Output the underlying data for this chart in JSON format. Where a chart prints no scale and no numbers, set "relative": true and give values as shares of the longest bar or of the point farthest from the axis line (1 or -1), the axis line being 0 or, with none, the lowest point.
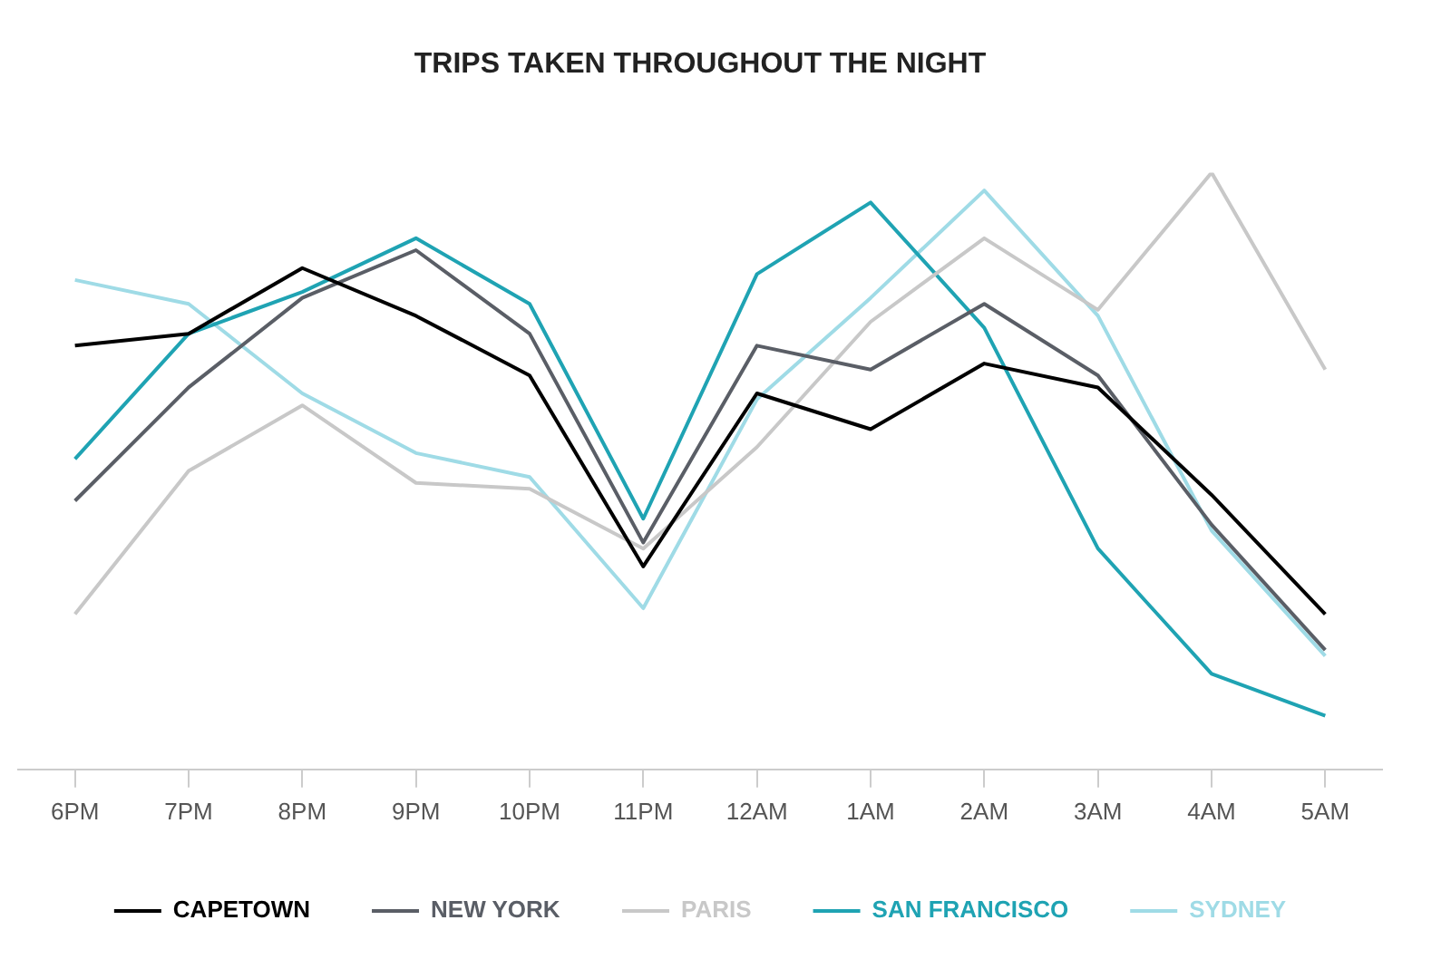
{
  "chart_data": {
    "type": "line",
    "title": "TRIPS TAKEN THROUGHOUT THE NIGHT",
    "relative": true,
    "legend": "bottom",
    "marker": "none",
    "line_style": "solid",
    "categories": [
      "6PM",
      "7PM",
      "8PM",
      "9PM",
      "10PM",
      "11PM",
      "12AM",
      "1AM",
      "2AM",
      "3AM",
      "4AM",
      "5AM"
    ],
    "series": [
      {
        "name": "CAPETOWN",
        "color": "#000000",
        "values": [
          0.71,
          0.73,
          0.84,
          0.76,
          0.66,
          0.34,
          0.63,
          0.57,
          0.68,
          0.64,
          0.46,
          0.26
        ]
      },
      {
        "name": "NEW YORK",
        "color": "#5a5e66",
        "values": [
          0.45,
          0.64,
          0.79,
          0.87,
          0.73,
          0.38,
          0.71,
          0.67,
          0.78,
          0.66,
          0.41,
          0.2
        ]
      },
      {
        "name": "PARIS",
        "color": "#c8c8c8",
        "values": [
          0.26,
          0.5,
          0.61,
          0.48,
          0.47,
          0.37,
          0.54,
          0.75,
          0.89,
          0.77,
          1,
          0.67
        ]
      },
      {
        "name": "SAN FRANCISCO",
        "color": "#1fa3b3",
        "values": [
          0.52,
          0.73,
          0.8,
          0.89,
          0.78,
          0.42,
          0.83,
          0.95,
          0.74,
          0.37,
          0.16,
          0.09
        ]
      },
      {
        "name": "SYDNEY",
        "color": "#9fdbe6",
        "values": [
          0.82,
          0.78,
          0.63,
          0.53,
          0.49,
          0.27,
          0.62,
          0.79,
          0.97,
          0.76,
          0.4,
          0.19
        ]
      }
    ]
  }
}
